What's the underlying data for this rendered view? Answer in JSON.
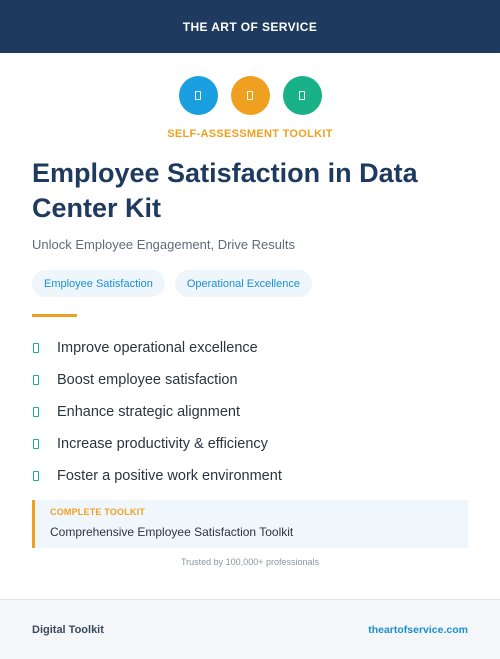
{
  "header": {
    "brand": "THE ART OF SERVICE",
    "background": "#1e3a5f"
  },
  "icons": [
    {
      "name": "blue-circle-icon",
      "color": "#1a9fe0"
    },
    {
      "name": "orange-circle-icon",
      "color": "#f0a020"
    },
    {
      "name": "green-circle-icon",
      "color": "#19b187"
    }
  ],
  "eyebrow": {
    "text": "SELF-ASSESSMENT TOOLKIT",
    "color": "#f0a020"
  },
  "title": "Employee Satisfaction in Data Center Kit",
  "subtitle": "Unlock Employee Engagement, Drive Results",
  "tags": [
    "Employee Satisfaction",
    "Operational Excellence"
  ],
  "benefits": [
    "Improve operational excellence",
    "Boost employee satisfaction",
    "Enhance strategic alignment",
    "Increase productivity & efficiency",
    "Foster a positive work environment"
  ],
  "callout": {
    "label": "COMPLETE TOOLKIT",
    "value": "Comprehensive Employee Satisfaction Toolkit"
  },
  "trust": "Trusted by 100,000+ professionals",
  "footer": {
    "left": "Digital Toolkit",
    "right": "theartofservice.com"
  }
}
